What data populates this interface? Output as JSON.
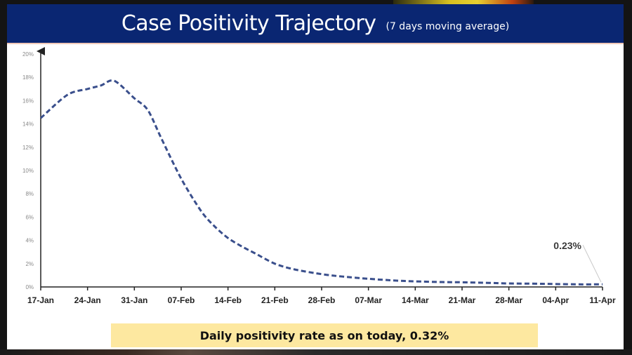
{
  "header": {
    "title": "Case Positivity Trajectory",
    "subtitle": "(7 days moving average)",
    "background_color": "#0a2672"
  },
  "footer": {
    "text": "Daily positivity rate as on today, 0.32%",
    "background_color": "#fde8a0"
  },
  "chart_data": {
    "type": "line",
    "title": "Case Positivity Trajectory",
    "subtitle": "(7 days moving average)",
    "xlabel": "",
    "ylabel": "",
    "ylim": [
      0,
      20
    ],
    "y_ticks": [
      "0%",
      "2%",
      "4%",
      "6%",
      "8%",
      "10%",
      "12%",
      "14%",
      "16%",
      "18%",
      "20%"
    ],
    "y_tick_values": [
      0,
      2,
      4,
      6,
      8,
      10,
      12,
      14,
      16,
      18,
      20
    ],
    "x_ticks": [
      "17-Jan",
      "24-Jan",
      "31-Jan",
      "07-Feb",
      "14-Feb",
      "21-Feb",
      "28-Feb",
      "07-Mar",
      "14-Mar",
      "21-Mar",
      "28-Mar",
      "04-Apr",
      "11-Apr"
    ],
    "x_unit": "days since 17-Jan",
    "xlim": [
      0,
      84
    ],
    "grid": false,
    "legend": "none",
    "series": [
      {
        "name": "Case positivity (7-day moving average, %)",
        "color": "#3a4f8c",
        "style": "dashed",
        "x": [
          0,
          4,
          7,
          9,
          11,
          14,
          16,
          18,
          21,
          24,
          26,
          28,
          30,
          32,
          35,
          38,
          42,
          45,
          49,
          53,
          56,
          60,
          63,
          67,
          70,
          74,
          77,
          81,
          84
        ],
        "y": [
          14.5,
          16.5,
          17.0,
          17.3,
          17.7,
          16.2,
          15.2,
          12.8,
          9.3,
          6.5,
          5.2,
          4.2,
          3.5,
          2.9,
          2.0,
          1.5,
          1.1,
          0.9,
          0.7,
          0.55,
          0.48,
          0.42,
          0.4,
          0.35,
          0.3,
          0.28,
          0.25,
          0.22,
          0.23
        ]
      }
    ],
    "annotations": [
      {
        "text": "0.23%",
        "x": 84,
        "y": 0.23
      }
    ]
  }
}
